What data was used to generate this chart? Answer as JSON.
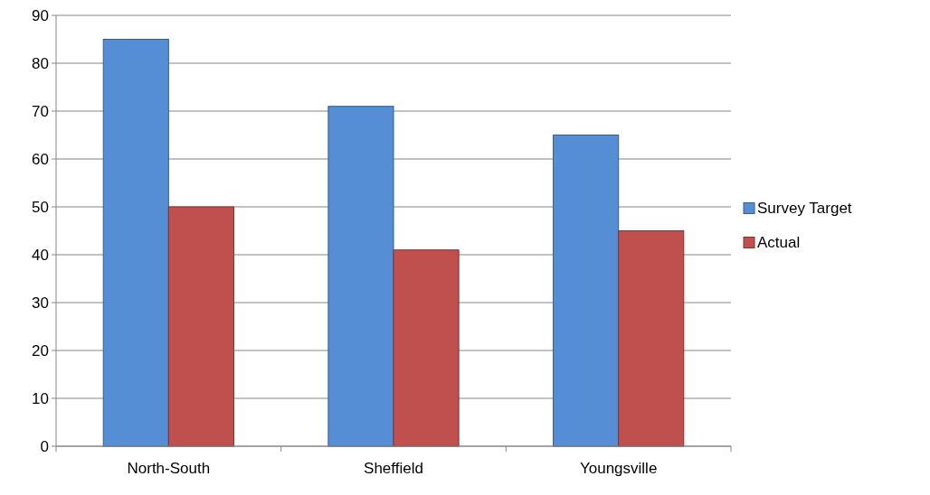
{
  "chart_data": {
    "type": "bar",
    "categories": [
      "North-South",
      "Sheffield",
      "Youngsville"
    ],
    "series": [
      {
        "name": "Survey Target",
        "color": "#558ed5",
        "values": [
          85,
          71,
          65
        ]
      },
      {
        "name": "Actual",
        "color": "#c0504d",
        "values": [
          50,
          41,
          45
        ]
      }
    ],
    "ylim": [
      0,
      90
    ],
    "yticks": [
      0,
      10,
      20,
      30,
      40,
      50,
      60,
      70,
      80,
      90
    ],
    "grid": "y",
    "legend": "right"
  }
}
